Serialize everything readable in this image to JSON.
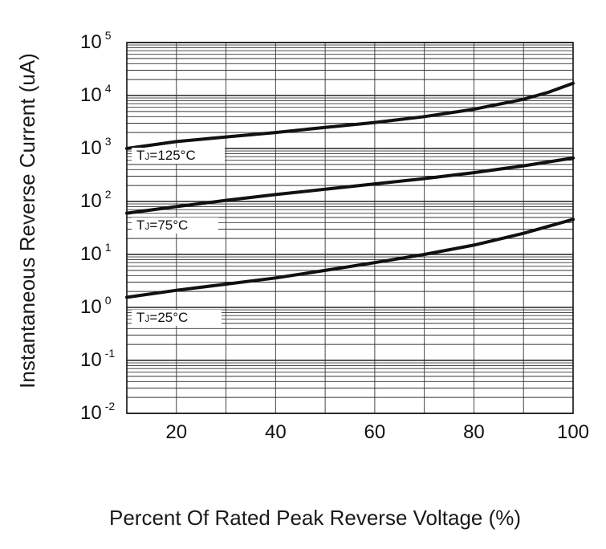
{
  "chart_data": {
    "type": "line",
    "xlabel": "Percent Of Rated Peak Reverse Voltage (%)",
    "ylabel": "Instantaneous Reverse Current (uA)",
    "xlim": [
      10,
      100
    ],
    "ylim_log10": [
      -2,
      5
    ],
    "y_scale": "log",
    "x_ticks": [
      {
        "value": 20,
        "label": "20"
      },
      {
        "value": 40,
        "label": "40"
      },
      {
        "value": 60,
        "label": "60"
      },
      {
        "value": 80,
        "label": "80"
      },
      {
        "value": 100,
        "label": "100"
      }
    ],
    "y_ticks": [
      {
        "exp": 5,
        "base": "10",
        "sup": "5"
      },
      {
        "exp": 4,
        "base": "10",
        "sup": "4"
      },
      {
        "exp": 3,
        "base": "10",
        "sup": "3"
      },
      {
        "exp": 2,
        "base": "10",
        "sup": "2"
      },
      {
        "exp": 1,
        "base": "10",
        "sup": "1"
      },
      {
        "exp": 0,
        "base": "10",
        "sup": "0"
      },
      {
        "exp": -1,
        "base": "10",
        "sup": "-1"
      },
      {
        "exp": -2,
        "base": "10",
        "sup": "-2"
      }
    ],
    "grid": true,
    "series": [
      {
        "name": "TJ=125°C",
        "label_main": "T",
        "label_sub": "J",
        "label_rest": "=125°C",
        "x": [
          10,
          20,
          30,
          40,
          50,
          60,
          70,
          80,
          90,
          95,
          100
        ],
        "y": [
          1000,
          1350,
          1650,
          2000,
          2500,
          3100,
          4000,
          5500,
          8500,
          11500,
          17000
        ]
      },
      {
        "name": "TJ=75°C",
        "label_main": "T",
        "label_sub": "J",
        "label_rest": "=75°C",
        "x": [
          10,
          20,
          30,
          40,
          50,
          60,
          70,
          80,
          90,
          100
        ],
        "y": [
          60,
          80,
          105,
          135,
          170,
          215,
          270,
          350,
          470,
          660
        ]
      },
      {
        "name": "TJ=25°C",
        "label_main": "T",
        "label_sub": "J",
        "label_rest": "=25°C",
        "x": [
          10,
          20,
          30,
          40,
          50,
          60,
          70,
          80,
          90,
          100
        ],
        "y": [
          1.55,
          2.1,
          2.75,
          3.6,
          5.0,
          7.0,
          10.0,
          15.0,
          25.0,
          46.0
        ]
      }
    ]
  }
}
